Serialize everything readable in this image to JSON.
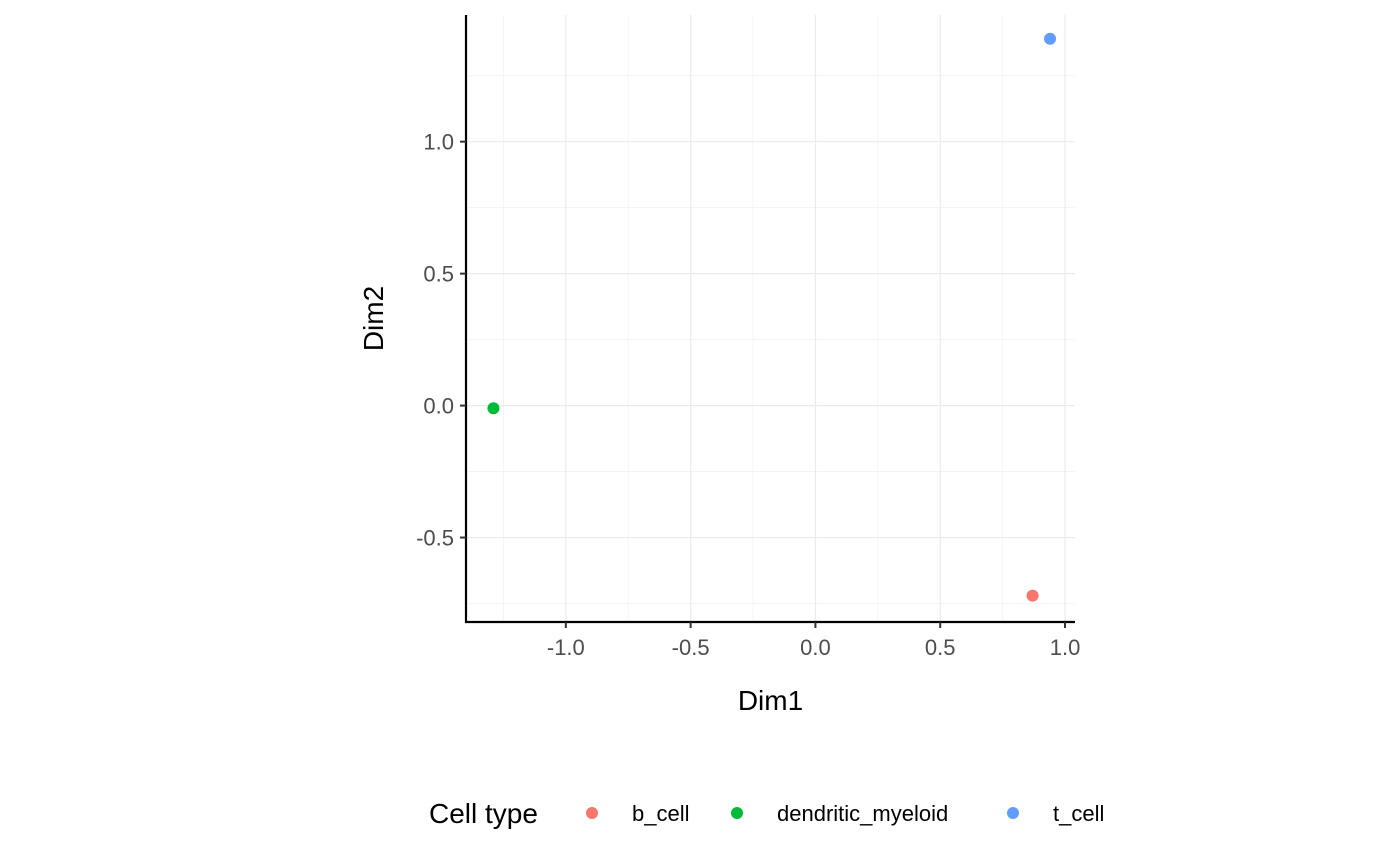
{
  "chart_data": {
    "type": "scatter",
    "xlabel": "Dim1",
    "ylabel": "Dim2",
    "xlim": [
      -1.4,
      1.04
    ],
    "ylim": [
      -0.82,
      1.48
    ],
    "x_ticks": [
      -1.0,
      -0.5,
      0.0,
      0.5,
      1.0
    ],
    "x_tick_labels": [
      "-1.0",
      "-0.5",
      "0.0",
      "0.5",
      "1.0"
    ],
    "y_ticks": [
      -0.5,
      0.0,
      0.5,
      1.0
    ],
    "y_tick_labels": [
      "-0.5",
      "0.0",
      "0.5",
      "1.0"
    ],
    "grid": true,
    "legend": {
      "title": "Cell type",
      "position": "bottom"
    },
    "series": [
      {
        "name": "b_cell",
        "color": "#F8766D",
        "points": [
          {
            "x": 0.87,
            "y": -0.72
          }
        ]
      },
      {
        "name": "dendritic_myeloid",
        "color": "#00BA38",
        "points": [
          {
            "x": -1.29,
            "y": -0.01
          }
        ]
      },
      {
        "name": "t_cell",
        "color": "#619CFF",
        "points": [
          {
            "x": 0.94,
            "y": 1.39
          }
        ]
      }
    ]
  }
}
